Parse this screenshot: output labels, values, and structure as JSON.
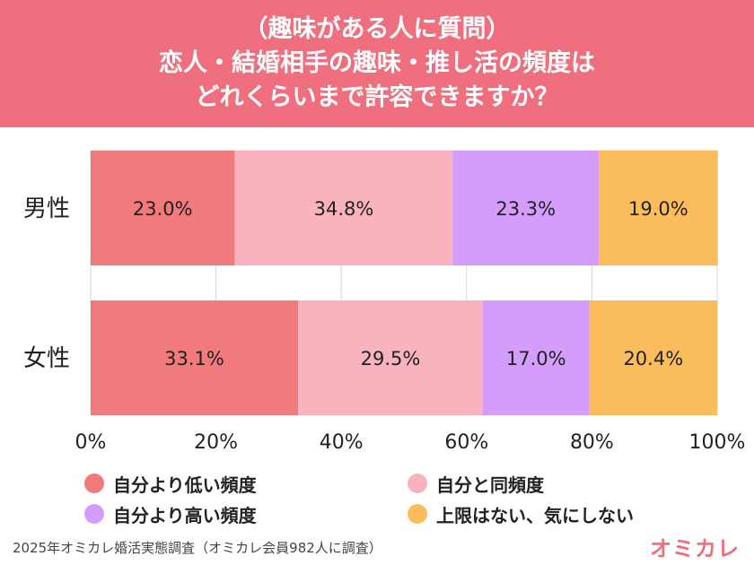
{
  "header": {
    "line1": "（趣味がある人に質問）",
    "line2": "恋人・結婚相手の趣味・推し活の頻度は",
    "line3": "どれくらいまで許容できますか？"
  },
  "chart_data": {
    "type": "bar",
    "orientation": "horizontal-stacked",
    "categories": [
      "男性",
      "女性"
    ],
    "series": [
      {
        "name": "自分より低い頻度",
        "values": [
          23.0,
          33.1
        ],
        "color": "#f17a7d"
      },
      {
        "name": "自分と同頻度",
        "values": [
          34.8,
          29.5
        ],
        "color": "#f9b3be"
      },
      {
        "name": "自分より高い頻度",
        "values": [
          23.3,
          17.0
        ],
        "color": "#d49cfb"
      },
      {
        "name": "上限はない、気にしない",
        "values": [
          19.0,
          20.4
        ],
        "color": "#fbbd5c"
      }
    ],
    "data_labels": [
      [
        "23.0%",
        "34.8%",
        "23.3%",
        "19.0%"
      ],
      [
        "33.1%",
        "29.5%",
        "17.0%",
        "20.4%"
      ]
    ],
    "xlim": [
      0,
      100
    ],
    "xticks": [
      0,
      20,
      40,
      60,
      80,
      100
    ],
    "xtick_labels": [
      "0%",
      "20%",
      "40%",
      "60%",
      "80%",
      "100%"
    ],
    "grid": true,
    "legend_placement": "bottom"
  },
  "legend": {
    "items": [
      {
        "label": "自分より低い頻度",
        "color": "#f17a7d"
      },
      {
        "label": "自分と同頻度",
        "color": "#f9b3be"
      },
      {
        "label": "自分より高い頻度",
        "color": "#d49cfb"
      },
      {
        "label": "上限はない、気にしない",
        "color": "#fbbd5c"
      }
    ]
  },
  "footer": {
    "source": "2025年オミカレ婚活実態調査（オミカレ会員982人に調査）"
  },
  "logo": {
    "text": "オミカレ"
  }
}
